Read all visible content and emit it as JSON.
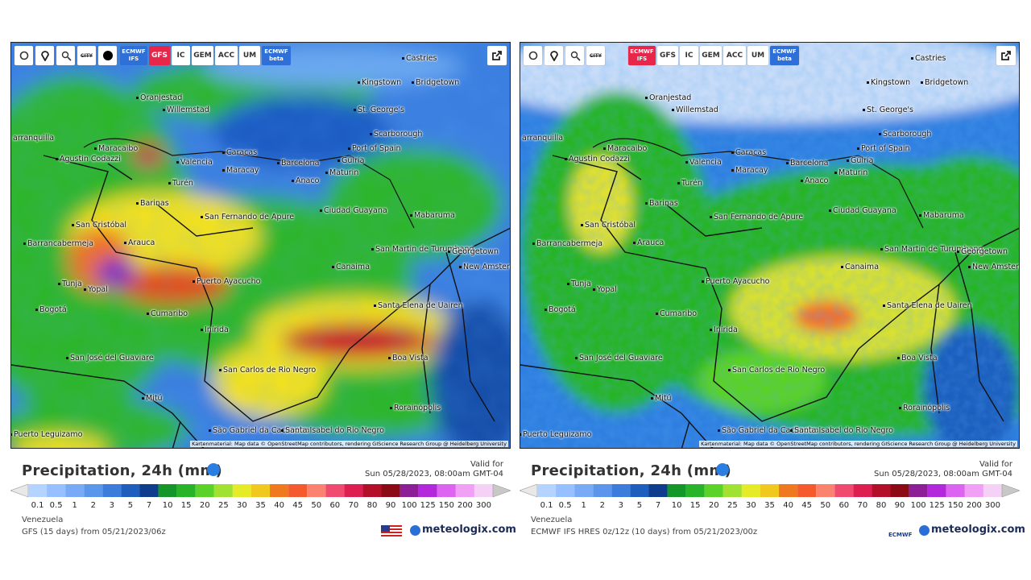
{
  "cities": [
    "Castries",
    "Kingstown",
    "Bridgetown",
    "St. George's",
    "Oranjestad",
    "Willemstad",
    "Scarborough",
    "Port of Spain",
    "Maracaibo",
    "Caracas",
    "Valencia",
    "Maracay",
    "Barcelona",
    "Güiria",
    "Anaco",
    "Maturin",
    "arranquilla",
    "Agustin Codazzi",
    "Turén",
    "Barinas",
    "San Cristóbal",
    "San Fernando de Apure",
    "Ciudad Guayana",
    "Mabaruma",
    "Barrancabermeja",
    "Arauca",
    "San Martin de Turumbang",
    "Georgetown",
    "New Amsterdam",
    "Canaima",
    "Puerto Ayacucho",
    "Tunja",
    "Yopal",
    "Santa Elena de Uairen",
    "Bogotá",
    "Cumaribo",
    "Inírida",
    "San José del Guaviare",
    "Boa Vista",
    "San Carlos de Rio Negro",
    "Mitú",
    "Rorainópolis",
    "Puerto Leguizamo",
    "São Gabriel da Cachoeira",
    "Santa Isabel do Rio Negro"
  ],
  "attribution": "Kartenmaterial: Map data © OpenStreetMap contributors, rendering GIScience Research Group @ Heidelberg University",
  "legend": {
    "ticks": [
      0.1,
      0.5,
      1,
      2,
      3,
      5,
      7,
      10,
      15,
      20,
      25,
      30,
      35,
      40,
      45,
      50,
      60,
      70,
      80,
      90,
      100,
      125,
      150,
      200,
      300
    ],
    "colors": [
      "#e8e8e8",
      "#b4d4ff",
      "#96c0ff",
      "#78aaf5",
      "#5a96eb",
      "#3c7ddc",
      "#1e5fbe",
      "#0f3c8c",
      "#149628",
      "#28b428",
      "#5ad228",
      "#a0e132",
      "#e6eb28",
      "#f0c81e",
      "#f0781e",
      "#f55a2d",
      "#fa826e",
      "#f04b6e",
      "#dc1e50",
      "#b40f28",
      "#8c0a14",
      "#8c1e96",
      "#b428dc",
      "#dc64f0",
      "#f0a0f5",
      "#f5d2f5",
      "#c8c8c8"
    ]
  },
  "panels": [
    {
      "buttons": [
        "CITY",
        "ECMWF IFS",
        "GFS",
        "IC",
        "GEM",
        "ACC",
        "UM",
        "ECMWF beta"
      ],
      "title": "Precipitation, 24h (mm)",
      "valid_label": "Valid for",
      "valid_time": "Sun 05/28/2023, 08:00am GMT-04",
      "region": "Venezuela",
      "run": "GFS (15 days) from 05/21/2023/06z",
      "brand": "meteologix.com"
    },
    {
      "buttons": [
        "CITY",
        "ECMWF IFS",
        "GFS",
        "IC",
        "GEM",
        "ACC",
        "UM",
        "ECMWF beta"
      ],
      "title": "Precipitation, 24h (mm)",
      "valid_label": "Valid for",
      "valid_time": "Sun 05/28/2023, 08:00am GMT-04",
      "region": "Venezuela",
      "run": "ECMWF IFS HRES 0z/12z (10 days) from 05/21/2023/00z",
      "brand": "meteologix.com",
      "logo": "ECMWF"
    }
  ]
}
